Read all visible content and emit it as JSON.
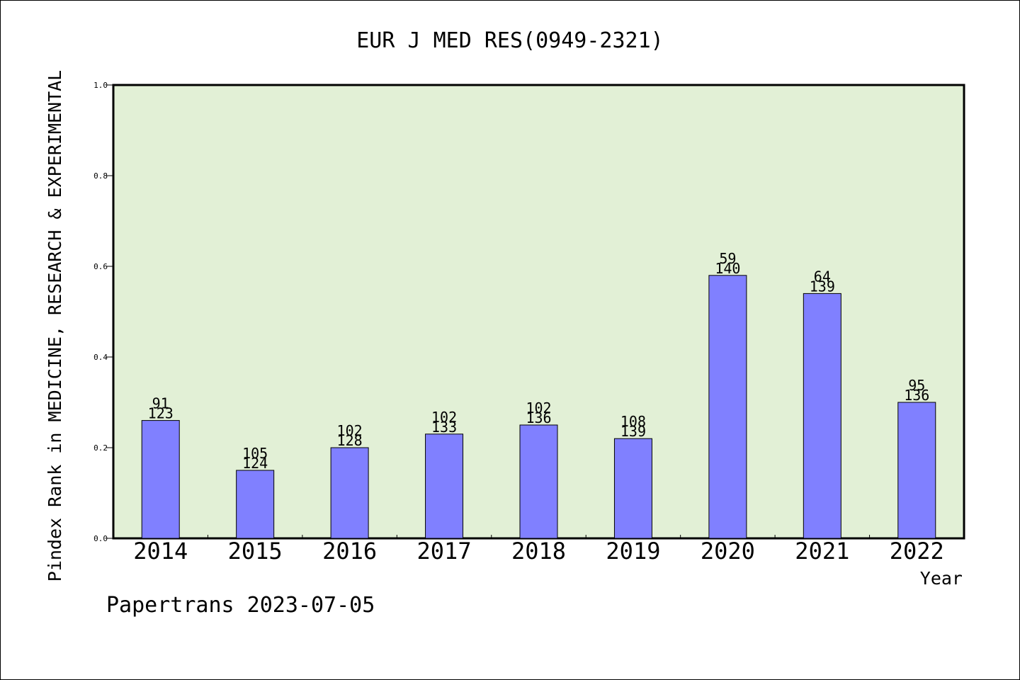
{
  "chart_data": {
    "type": "bar",
    "title": "EUR J MED RES(0949-2321)",
    "xlabel": "Year",
    "ylabel": "Pindex Rank in MEDICINE, RESEARCH & EXPERIMENTAL",
    "categories": [
      "2014",
      "2015",
      "2016",
      "2017",
      "2018",
      "2019",
      "2020",
      "2021",
      "2022"
    ],
    "values": [
      0.26,
      0.15,
      0.2,
      0.23,
      0.25,
      0.22,
      0.58,
      0.54,
      0.3
    ],
    "labels_top": [
      "91",
      "105",
      "102",
      "102",
      "102",
      "108",
      "59",
      "64",
      "95"
    ],
    "labels_bottom": [
      "123",
      "124",
      "128",
      "133",
      "136",
      "139",
      "140",
      "139",
      "136"
    ],
    "ylim": [
      0,
      1.0
    ],
    "yticks": [
      "0.0",
      "0.2",
      "0.4",
      "0.6",
      "0.8",
      "1.0"
    ],
    "grid": false,
    "colors": {
      "plot_bg": "#e2f0d6",
      "bar": "#8080ff",
      "bar_edge": "#000000"
    }
  },
  "footer": {
    "credit": "Papertrans 2023-07-05"
  }
}
